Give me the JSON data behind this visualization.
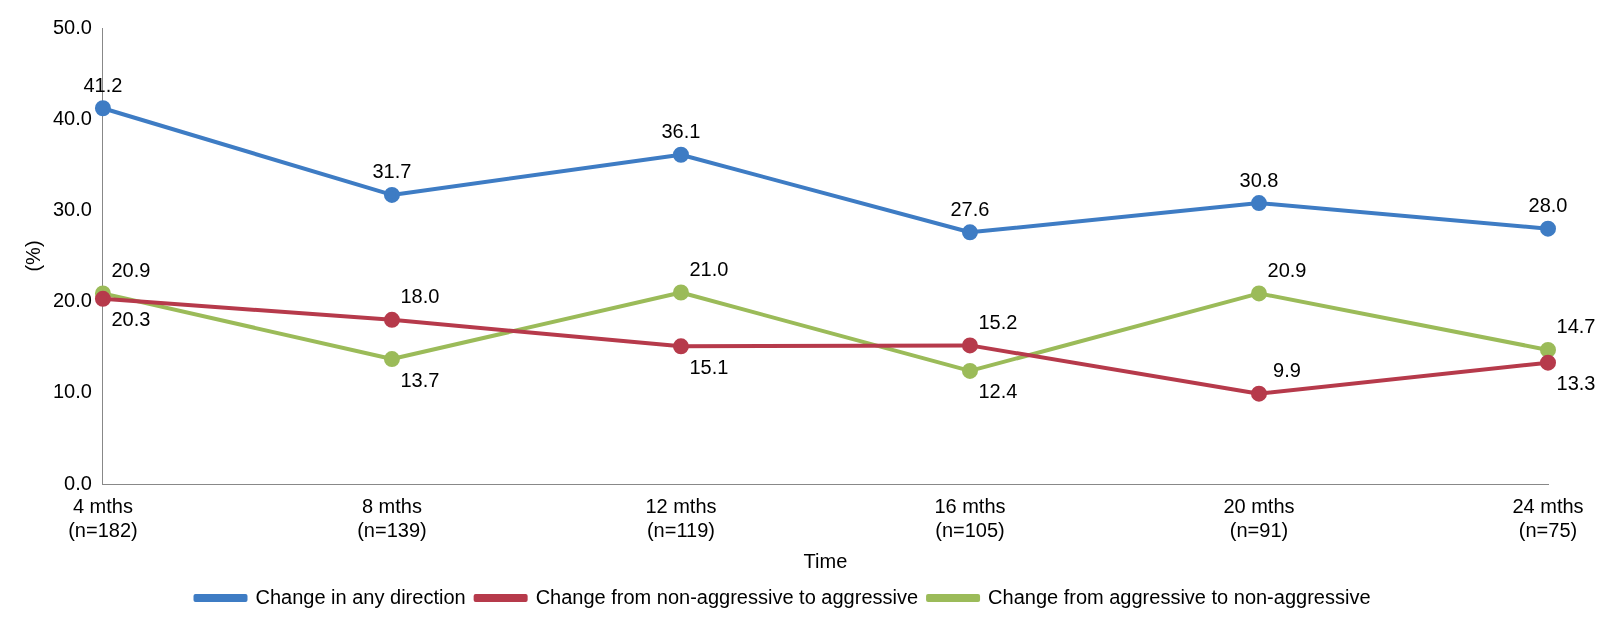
{
  "chart_data": {
    "type": "line",
    "xlabel": "Time",
    "ylabel": "(%)",
    "categories": [
      "4 mths\n(n=182)",
      "8 mths\n(n=139)",
      "12 mths\n(n=119)",
      "16 mths\n(n=105)",
      "20 mths\n(n=91)",
      "24 mths\n(n=75)"
    ],
    "series": [
      {
        "name": "Change in any direction",
        "color": "#3e7cc4",
        "values": [
          41.2,
          31.7,
          36.1,
          27.6,
          30.8,
          28.0
        ],
        "value_labels": [
          "41.2",
          "31.7",
          "36.1",
          "27.6",
          "30.8",
          "28.0"
        ]
      },
      {
        "name": "Change from non-aggressive to aggressive",
        "color": "#b63a4b",
        "values": [
          20.3,
          18.0,
          15.1,
          15.2,
          9.9,
          13.3
        ],
        "value_labels": [
          "20.3",
          "18.0",
          "15.1",
          "15.2",
          "9.9",
          "13.3"
        ]
      },
      {
        "name": "Change from aggressive to non-aggressive",
        "color": "#9bbb59",
        "values": [
          20.9,
          13.7,
          21.0,
          12.4,
          20.9,
          14.7
        ],
        "value_labels": [
          "20.9",
          "13.7",
          "21.0",
          "12.4",
          "20.9",
          "14.7"
        ]
      }
    ],
    "ylim": [
      0,
      50
    ],
    "yticks": [
      {
        "value": 0,
        "label": "0.0"
      },
      {
        "value": 10,
        "label": "10.0"
      },
      {
        "value": 20,
        "label": "20.0"
      },
      {
        "value": 30,
        "label": "30.0"
      },
      {
        "value": 40,
        "label": "40.0"
      },
      {
        "value": 50,
        "label": "50.0"
      }
    ],
    "grid": false,
    "legend": "bottom",
    "marker": "circle",
    "line_style": "solid"
  }
}
